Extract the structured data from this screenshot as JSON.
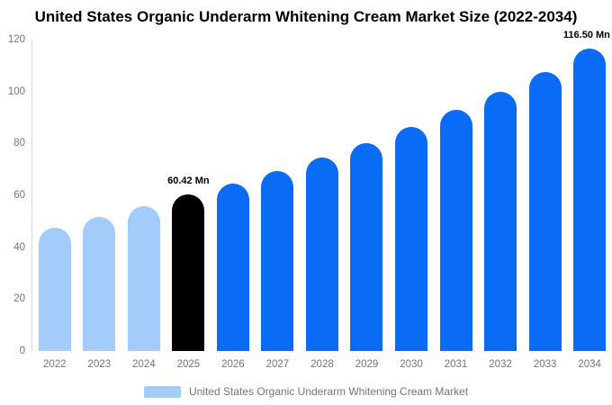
{
  "title": "United States Organic Underarm Whitening Cream Market Size (2022-2034)",
  "colors": {
    "past_bar": "#A3CCFA",
    "current_bar": "#000000",
    "forecast_bar": "#0A6BF5",
    "axis_line": "#D8D8D8",
    "tick_text": "#757575",
    "title_text": "#000000"
  },
  "chart_data": {
    "type": "bar",
    "title": "United States Organic Underarm Whitening Cream Market Size (2022-2034)",
    "categories": [
      "2022",
      "2023",
      "2024",
      "2025",
      "2026",
      "2027",
      "2028",
      "2029",
      "2030",
      "2031",
      "2032",
      "2033",
      "2034"
    ],
    "values": [
      47.6,
      51.8,
      56.0,
      60.42,
      64.6,
      69.4,
      74.7,
      80.3,
      86.4,
      92.9,
      99.9,
      107.5,
      116.5
    ],
    "unit": "Mn",
    "ylim": [
      0,
      120
    ],
    "yticks": [
      0,
      20,
      40,
      60,
      80,
      100,
      120
    ],
    "grid": false,
    "xlabel": "",
    "ylabel": "",
    "bar_colors": [
      "past",
      "past",
      "past",
      "current",
      "forecast",
      "forecast",
      "forecast",
      "forecast",
      "forecast",
      "forecast",
      "forecast",
      "forecast",
      "forecast"
    ],
    "palette": {
      "past": "#A3CCFA",
      "current": "#000000",
      "forecast": "#0A6BF5"
    },
    "annotations": [
      {
        "index": 3,
        "text": "60.42 Mn",
        "align": "center"
      },
      {
        "index": 12,
        "text": "116.50 Mn",
        "align": "right"
      }
    ],
    "legend_position": "bottom",
    "legend": [
      {
        "label": "United States Organic Underarm Whitening Cream Market",
        "color": "#A3CCFA"
      }
    ]
  }
}
